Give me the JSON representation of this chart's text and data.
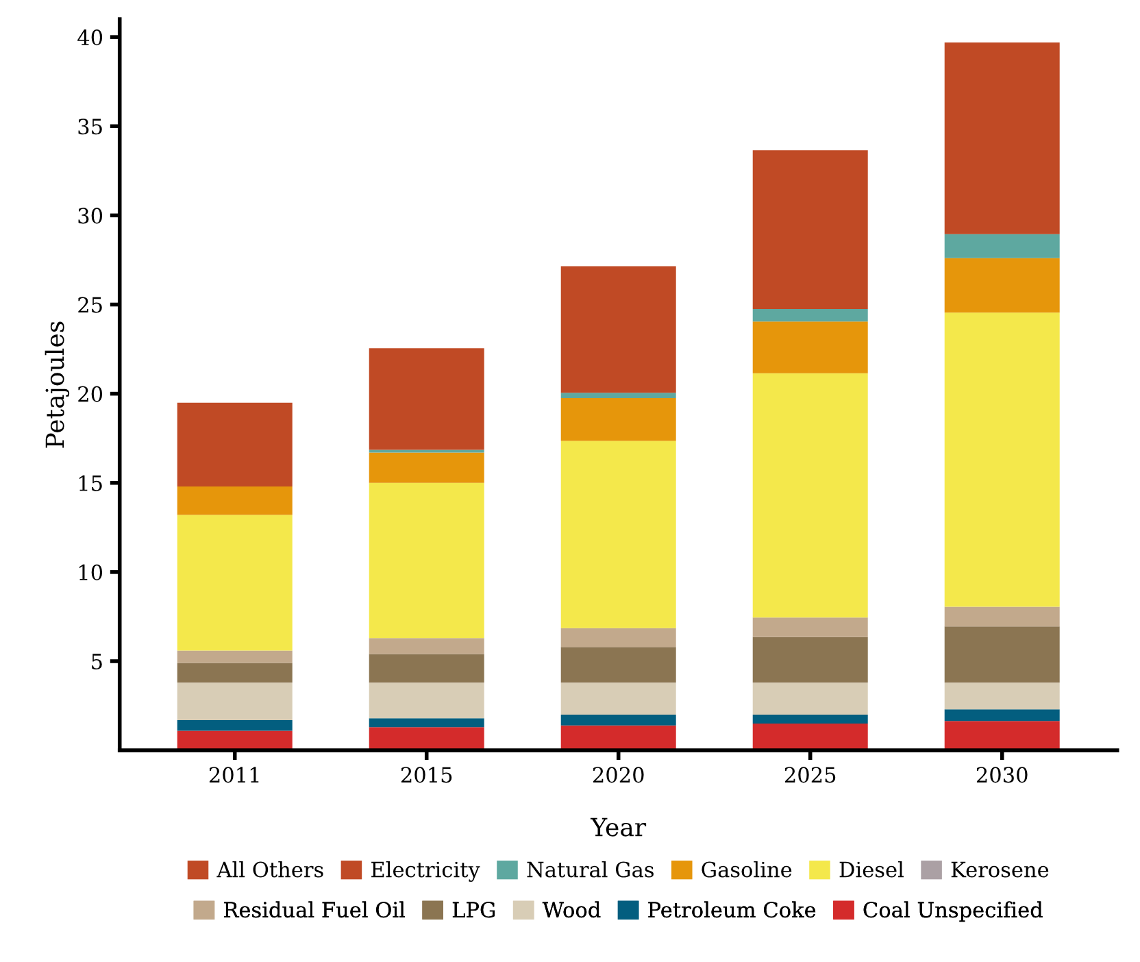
{
  "chart_data": {
    "type": "bar",
    "stacked": true,
    "xlabel": "Year",
    "ylabel": "Petajoules",
    "categories": [
      "2011",
      "2015",
      "2020",
      "2025",
      "2030"
    ],
    "ylim": [
      0,
      41
    ],
    "yticks": [
      5,
      10,
      15,
      20,
      25,
      30,
      35,
      40
    ],
    "grid": false,
    "legend": "bottom",
    "series": [
      {
        "name": "Coal Unspecified",
        "color": "#d42b2b",
        "values": [
          1.1,
          1.3,
          1.4,
          1.5,
          1.65
        ]
      },
      {
        "name": "Petroleum Coke",
        "color": "#035e7f",
        "values": [
          0.6,
          0.5,
          0.6,
          0.5,
          0.65
        ]
      },
      {
        "name": "Wood",
        "color": "#d8cdb6",
        "values": [
          2.1,
          2.0,
          1.8,
          1.8,
          1.5
        ]
      },
      {
        "name": "LPG",
        "color": "#8b7552",
        "values": [
          1.1,
          1.6,
          2.0,
          2.55,
          3.15
        ]
      },
      {
        "name": "Residual Fuel Oil",
        "color": "#c2a98c",
        "values": [
          0.7,
          0.9,
          1.05,
          1.1,
          1.1
        ]
      },
      {
        "name": "Kerosene",
        "color": "#aba0a4",
        "values": [
          null,
          null,
          null,
          null,
          null
        ]
      },
      {
        "name": "Diesel",
        "color": "#f4e84b",
        "values": [
          7.6,
          8.7,
          10.5,
          13.7,
          16.5
        ]
      },
      {
        "name": "Gasoline",
        "color": "#e6960b",
        "values": [
          1.6,
          1.7,
          2.4,
          2.9,
          3.05
        ]
      },
      {
        "name": "Natural Gas",
        "color": "#5ea8a0",
        "values": [
          null,
          0.15,
          0.3,
          0.7,
          1.35
        ]
      },
      {
        "name": "Electricity",
        "color": "#c04a25",
        "values": [
          4.7,
          5.7,
          7.1,
          8.9,
          10.75
        ]
      },
      {
        "name": "All Others",
        "color": "#c04a25",
        "values": [
          null,
          null,
          null,
          null,
          null
        ]
      }
    ]
  }
}
